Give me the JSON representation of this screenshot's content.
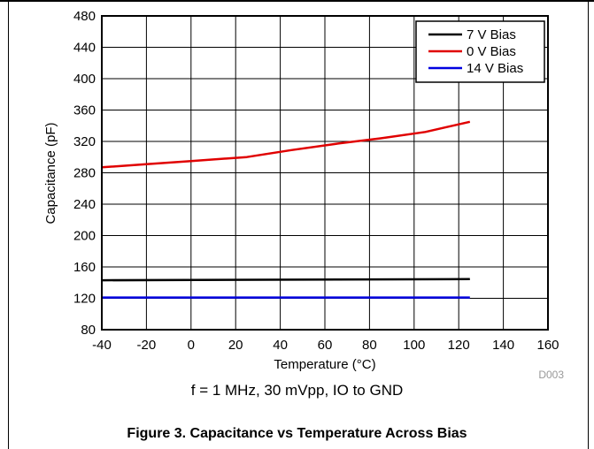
{
  "chart_data": {
    "type": "line",
    "ylabel": "Capacitance (pF)",
    "xlabel": "Temperature (°C)",
    "xlim": [
      -40,
      160
    ],
    "ylim": [
      80,
      480
    ],
    "xticks": [
      -40,
      -20,
      0,
      20,
      40,
      60,
      80,
      100,
      120,
      140,
      160
    ],
    "yticks": [
      80,
      120,
      160,
      200,
      240,
      280,
      320,
      360,
      400,
      440,
      480
    ],
    "xtick_labels": [
      "-40",
      "-20",
      "0",
      "20",
      "40",
      "60",
      "80",
      "100",
      "120",
      "140",
      "160"
    ],
    "ytick_labels": [
      "80",
      "120",
      "160",
      "200",
      "240",
      "280",
      "320",
      "360",
      "400",
      "440",
      "480"
    ],
    "grid": true,
    "legend_position": "top-right",
    "series": [
      {
        "name": "7 V Bias",
        "color": "#000000",
        "x": [
          -40,
          125
        ],
        "y": [
          143,
          144.5
        ]
      },
      {
        "name": "0 V Bias",
        "color": "#e00000",
        "x": [
          -40,
          -20,
          0,
          25,
          45,
          65,
          85,
          105,
          125
        ],
        "y": [
          287,
          291,
          295,
          300,
          309,
          317,
          324,
          332,
          345
        ]
      },
      {
        "name": "14 V Bias",
        "color": "#0000e0",
        "x": [
          -40,
          125
        ],
        "y": [
          121,
          121
        ]
      }
    ],
    "annotation": "D003"
  },
  "subcaption": "f = 1 MHz, 30 mVpp, IO to GND",
  "figure_caption": "Figure 3. Capacitance vs Temperature Across Bias"
}
